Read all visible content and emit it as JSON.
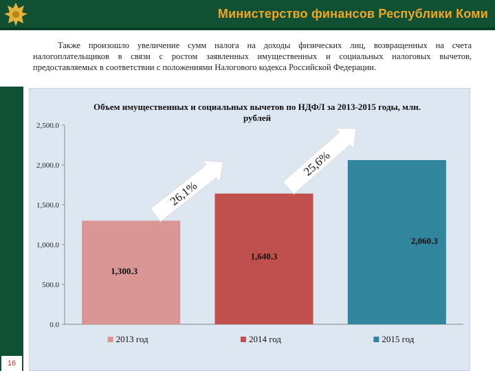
{
  "header": {
    "title": "Министерство финансов Республики Коми",
    "logo": "komi-emblem-icon",
    "colors": {
      "band": "#0f5132",
      "title": "#f2a623"
    }
  },
  "intro_text": "Также произошло увеличение сумм налога на доходы физических лиц, возвращенных на счета налогоплательщиков в связи с ростом заявленных имущественных и социальных налоговых вычетов, предоставляемых в соответствии с положениями Налогового кодекса Российской Федерации.",
  "page_number": "16",
  "chart_data": {
    "type": "bar",
    "title": "Объем имущественных и социальных вычетов по НДФЛ за 2013-2015 годы, млн. рублей",
    "categories": [
      "2013 год",
      "2014 год",
      "2015 год"
    ],
    "values": [
      1300.3,
      1640.3,
      2060.3
    ],
    "value_labels": [
      "1,300.3",
      "1,640.3",
      "2,060.3"
    ],
    "colors": [
      "#d99694",
      "#c0504d",
      "#31859c"
    ],
    "ylim": [
      0,
      2500
    ],
    "yticks": [
      0,
      500,
      1000,
      1500,
      2000,
      2500
    ],
    "ytick_labels": [
      "0.0",
      "500.0",
      "1,000.0",
      "1,500.0",
      "2,000.0",
      "2,500.0"
    ],
    "growth_labels": [
      "26,1%",
      "25,6%"
    ],
    "legend": {
      "position": "bottom",
      "entries": [
        "2013 год",
        "2014 год",
        "2015 год"
      ]
    },
    "grid": false,
    "xlabel": "",
    "ylabel": ""
  }
}
